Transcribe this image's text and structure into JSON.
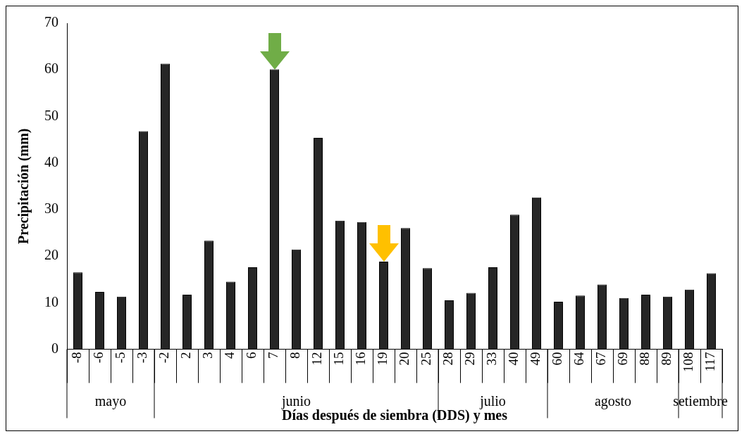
{
  "chart_data": {
    "type": "bar",
    "xlabel": "Días después de siembra (DDS) y mes",
    "ylabel": "Precipitación (mm)",
    "categories": [
      "-8",
      "-6",
      "-5",
      "-3",
      "-2",
      "2",
      "3",
      "4",
      "6",
      "7",
      "8",
      "12",
      "15",
      "16",
      "19",
      "20",
      "25",
      "28",
      "29",
      "33",
      "40",
      "49",
      "60",
      "64",
      "67",
      "69",
      "88",
      "89",
      "108",
      "117"
    ],
    "values": [
      16.5,
      12.3,
      11.3,
      46.8,
      61.3,
      11.7,
      23.3,
      14.5,
      17.6,
      60.1,
      21.4,
      45.4,
      27.6,
      27.3,
      18.8,
      26.0,
      17.4,
      10.5,
      12.1,
      17.6,
      28.9,
      32.6,
      10.2,
      11.5,
      13.9,
      11.0,
      11.7,
      11.3,
      12.8,
      16.3
    ],
    "color": "#262626",
    "ylim": [
      0,
      70
    ],
    "yticks": [
      0,
      10,
      20,
      30,
      40,
      50,
      60,
      70
    ],
    "grid": false,
    "legend": false,
    "annotations": [
      "mayo",
      "junio",
      "julio",
      "agosto",
      "setiembre"
    ]
  }
}
